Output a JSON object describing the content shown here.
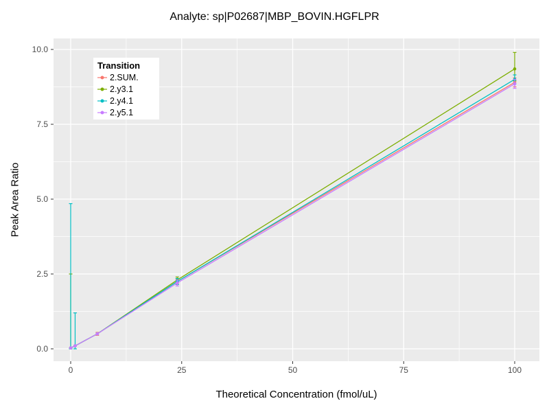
{
  "title": "Analyte: sp|P02687|MBP_BOVIN.HGFLPR",
  "chart_data": {
    "type": "line",
    "title": "Analyte: sp|P02687|MBP_BOVIN.HGFLPR",
    "xlabel": "Theoretical Concentration (fmol/uL)",
    "ylabel": "Peak Area Ratio",
    "xlim": [
      0,
      100
    ],
    "ylim": [
      0,
      10
    ],
    "x_ticks": [
      0,
      25,
      50,
      75,
      100
    ],
    "x_tick_labels": [
      "0",
      "25",
      "50",
      "75",
      "100"
    ],
    "y_ticks": [
      0,
      2.5,
      5,
      7.5,
      10
    ],
    "y_tick_labels": [
      "0.0",
      "2.5",
      "5.0",
      "7.5",
      "10.0"
    ],
    "grid": true,
    "panel_bg": "#EBEBEB",
    "grid_color": "#FFFFFF",
    "tick_label_color": "#4D4D4D",
    "tick_mark_color": "#333333",
    "legend": {
      "title": "Transition",
      "position": "top-left-inside",
      "entries": [
        "2.SUM.",
        "2.y3.1",
        "2.y4.1",
        "2.y5.1"
      ]
    },
    "x": [
      0,
      1,
      6,
      24,
      100
    ],
    "series": [
      {
        "name": "2.SUM.",
        "color": "#F8766D",
        "values": [
          0.03,
          0.1,
          0.5,
          2.25,
          8.9
        ],
        "errors": [
          null,
          null,
          [
            0.45,
            0.55
          ],
          [
            2.15,
            2.35
          ],
          [
            8.75,
            9.05
          ]
        ]
      },
      {
        "name": "2.y3.1",
        "color": "#7CAE00",
        "values": [
          0.03,
          0.1,
          0.5,
          2.3,
          9.35
        ],
        "errors": [
          [
            0,
            2.5
          ],
          null,
          null,
          [
            2.2,
            2.4
          ],
          [
            8.95,
            9.9
          ]
        ]
      },
      {
        "name": "2.y4.1",
        "color": "#00BFC4",
        "values": [
          0.03,
          0.1,
          0.5,
          2.25,
          9.0
        ],
        "errors": [
          [
            0,
            4.85
          ],
          [
            0,
            1.2
          ],
          null,
          [
            2.15,
            2.35
          ],
          [
            8.85,
            9.15
          ]
        ]
      },
      {
        "name": "2.y5.1",
        "color": "#C77CFF",
        "values": [
          0.03,
          0.1,
          0.5,
          2.2,
          8.85
        ],
        "errors": [
          null,
          null,
          null,
          [
            2.1,
            2.3
          ],
          [
            8.7,
            9.0
          ]
        ]
      }
    ]
  }
}
